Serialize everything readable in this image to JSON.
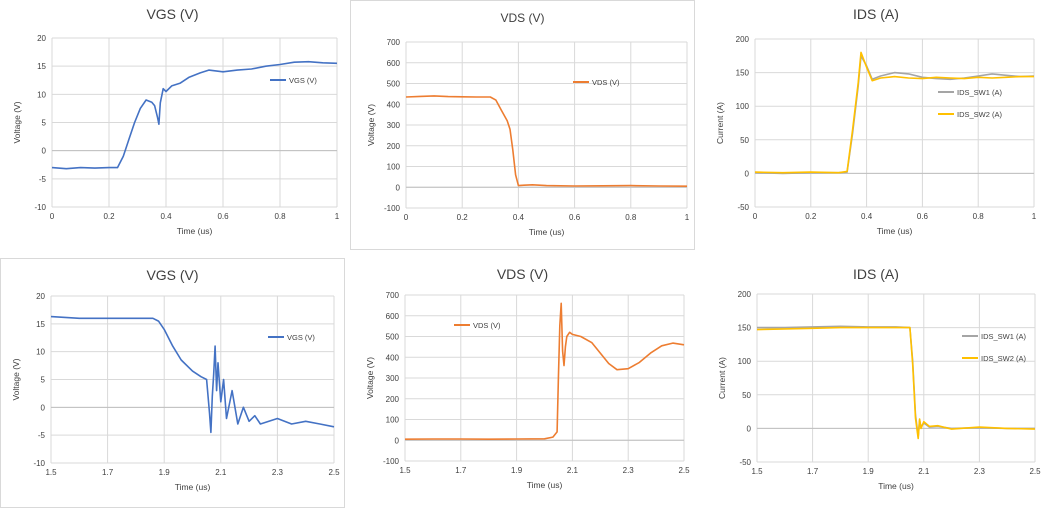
{
  "chart_data": [
    {
      "type": "line",
      "title": "VGS (V)",
      "xlabel": "Time (us)",
      "ylabel": "Voltage (V)",
      "xlim": [
        0,
        1
      ],
      "ylim": [
        -10,
        20
      ],
      "xticks": [
        0,
        0.2,
        0.4,
        0.6,
        0.8,
        1
      ],
      "yticks": [
        -10,
        -5,
        0,
        5,
        10,
        15,
        20
      ],
      "xtick_labels": [
        "0",
        "0.2",
        "0.4",
        "0.6",
        "0.8",
        "1"
      ],
      "ytick_labels": [
        "-10",
        "-5",
        "0",
        "5",
        "10",
        "15",
        "20"
      ],
      "grid": true,
      "legend_position": "right",
      "series": [
        {
          "name": "VGS (V)",
          "color": "#4472c4",
          "x": [
            0,
            0.05,
            0.1,
            0.15,
            0.2,
            0.23,
            0.25,
            0.27,
            0.29,
            0.31,
            0.33,
            0.35,
            0.36,
            0.37,
            0.375,
            0.38,
            0.39,
            0.4,
            0.42,
            0.45,
            0.48,
            0.52,
            0.55,
            0.6,
            0.65,
            0.7,
            0.75,
            0.8,
            0.85,
            0.9,
            0.95,
            1.0
          ],
          "y": [
            -3,
            -3.2,
            -3,
            -3.1,
            -3,
            -3,
            -1,
            2,
            5,
            7.5,
            9,
            8.6,
            8,
            6,
            4.7,
            8.5,
            11,
            10.5,
            11.5,
            12,
            13,
            13.8,
            14.3,
            14,
            14.3,
            14.5,
            15,
            15.3,
            15.7,
            15.8,
            15.6,
            15.5
          ]
        }
      ]
    },
    {
      "type": "line",
      "title": "VDS (V)",
      "xlabel": "Time (us)",
      "ylabel": "Voltage (V)",
      "xlim": [
        0,
        1
      ],
      "ylim": [
        -100,
        700
      ],
      "xticks": [
        0,
        0.2,
        0.4,
        0.6,
        0.8,
        1
      ],
      "yticks": [
        -100,
        0,
        100,
        200,
        300,
        400,
        500,
        600,
        700
      ],
      "xtick_labels": [
        "0",
        "0.2",
        "0.4",
        "0.6",
        "0.8",
        "1"
      ],
      "ytick_labels": [
        "-100",
        "0",
        "100",
        "200",
        "300",
        "400",
        "500",
        "600",
        "700"
      ],
      "grid": true,
      "legend_position": "right",
      "series": [
        {
          "name": "VDS (V)",
          "color": "#ed7d31",
          "x": [
            0,
            0.05,
            0.1,
            0.15,
            0.2,
            0.25,
            0.3,
            0.32,
            0.34,
            0.36,
            0.37,
            0.38,
            0.39,
            0.4,
            0.42,
            0.45,
            0.5,
            0.6,
            0.7,
            0.8,
            0.9,
            1.0
          ],
          "y": [
            435,
            438,
            440,
            437,
            436,
            435,
            435,
            420,
            370,
            320,
            280,
            180,
            60,
            8,
            10,
            12,
            8,
            6,
            7,
            8,
            6,
            5
          ]
        }
      ]
    },
    {
      "type": "line",
      "title": "IDS (A)",
      "xlabel": "Time (us)",
      "ylabel": "Current (A)",
      "xlim": [
        0,
        1
      ],
      "ylim": [
        -50,
        200
      ],
      "xticks": [
        0,
        0.2,
        0.4,
        0.6,
        0.8,
        1
      ],
      "yticks": [
        -50,
        0,
        50,
        100,
        150,
        200
      ],
      "xtick_labels": [
        "0",
        "0.2",
        "0.4",
        "0.6",
        "0.8",
        "1"
      ],
      "ytick_labels": [
        "-50",
        "0",
        "50",
        "100",
        "150",
        "200"
      ],
      "grid": true,
      "legend_position": "right",
      "series": [
        {
          "name": "IDS_SW1 (A)",
          "color": "#a5a5a5",
          "x": [
            0,
            0.1,
            0.2,
            0.3,
            0.33,
            0.35,
            0.37,
            0.38,
            0.4,
            0.42,
            0.45,
            0.5,
            0.55,
            0.6,
            0.65,
            0.7,
            0.75,
            0.8,
            0.85,
            0.9,
            0.95,
            1.0
          ],
          "y": [
            1,
            0,
            1,
            1,
            2,
            60,
            130,
            175,
            160,
            140,
            145,
            150,
            148,
            143,
            141,
            140,
            142,
            145,
            148,
            146,
            144,
            145
          ]
        },
        {
          "name": "IDS_SW2 (A)",
          "color": "#ffc000",
          "x": [
            0,
            0.1,
            0.2,
            0.3,
            0.33,
            0.35,
            0.37,
            0.38,
            0.4,
            0.42,
            0.45,
            0.5,
            0.55,
            0.6,
            0.65,
            0.7,
            0.75,
            0.8,
            0.85,
            0.9,
            0.95,
            1.0
          ],
          "y": [
            2,
            1,
            2,
            1,
            3,
            65,
            135,
            180,
            158,
            138,
            142,
            144,
            142,
            141,
            143,
            142,
            141,
            143,
            142,
            143,
            144,
            144
          ]
        }
      ]
    },
    {
      "type": "line",
      "title": "VGS (V)",
      "xlabel": "Time (us)",
      "ylabel": "Voltage (V)",
      "xlim": [
        1.5,
        2.5
      ],
      "ylim": [
        -10,
        20
      ],
      "xticks": [
        1.5,
        1.7,
        1.9,
        2.1,
        2.3,
        2.5
      ],
      "yticks": [
        -10,
        -5,
        0,
        5,
        10,
        15,
        20
      ],
      "xtick_labels": [
        "1.5",
        "1.7",
        "1.9",
        "2.1",
        "2.3",
        "2.5"
      ],
      "ytick_labels": [
        "-10",
        "-5",
        "0",
        "5",
        "10",
        "15",
        "20"
      ],
      "grid": true,
      "legend_position": "right",
      "series": [
        {
          "name": "VGS (V)",
          "color": "#4472c4",
          "x": [
            1.5,
            1.6,
            1.7,
            1.8,
            1.86,
            1.88,
            1.9,
            1.93,
            1.96,
            2.0,
            2.03,
            2.05,
            2.06,
            2.065,
            2.07,
            2.075,
            2.08,
            2.085,
            2.09,
            2.1,
            2.11,
            2.12,
            2.14,
            2.16,
            2.18,
            2.2,
            2.22,
            2.24,
            2.27,
            2.3,
            2.35,
            2.4,
            2.45,
            2.5
          ],
          "y": [
            16.3,
            16,
            16,
            16,
            16,
            15.5,
            14,
            11,
            8.5,
            6.5,
            5.5,
            5,
            -1,
            -4.5,
            2,
            6,
            11,
            3,
            8,
            1,
            5,
            -2,
            3,
            -3,
            0,
            -2.5,
            -1.5,
            -3,
            -2.5,
            -2,
            -3,
            -2.5,
            -3,
            -3.5
          ]
        }
      ]
    },
    {
      "type": "line",
      "title": "VDS (V)",
      "xlabel": "Time (us)",
      "ylabel": "Voltage (V)",
      "xlim": [
        1.5,
        2.5
      ],
      "ylim": [
        -100,
        700
      ],
      "xticks": [
        1.5,
        1.7,
        1.9,
        2.1,
        2.3,
        2.5
      ],
      "yticks": [
        -100,
        0,
        100,
        200,
        300,
        400,
        500,
        600,
        700
      ],
      "xtick_labels": [
        "1.5",
        "1.7",
        "1.9",
        "2.1",
        "2.3",
        "2.5"
      ],
      "ytick_labels": [
        "-100",
        "0",
        "100",
        "200",
        "300",
        "400",
        "500",
        "600",
        "700"
      ],
      "grid": true,
      "legend_position": "top-left",
      "series": [
        {
          "name": "VDS (V)",
          "color": "#ed7d31",
          "x": [
            1.5,
            1.6,
            1.7,
            1.8,
            1.9,
            2.0,
            2.03,
            2.045,
            2.05,
            2.055,
            2.06,
            2.065,
            2.07,
            2.075,
            2.08,
            2.09,
            2.1,
            2.13,
            2.17,
            2.2,
            2.23,
            2.26,
            2.3,
            2.34,
            2.38,
            2.42,
            2.46,
            2.5
          ],
          "y": [
            5,
            6,
            6,
            5,
            6,
            7,
            15,
            40,
            300,
            550,
            660,
            430,
            360,
            450,
            500,
            520,
            510,
            500,
            470,
            420,
            370,
            340,
            345,
            375,
            420,
            455,
            468,
            460
          ]
        }
      ]
    },
    {
      "type": "line",
      "title": "IDS (A)",
      "xlabel": "Time (us)",
      "ylabel": "Current (A)",
      "xlim": [
        1.5,
        2.5
      ],
      "ylim": [
        -50,
        200
      ],
      "xticks": [
        1.5,
        1.7,
        1.9,
        2.1,
        2.3,
        2.5
      ],
      "yticks": [
        -50,
        0,
        50,
        100,
        150,
        200
      ],
      "xtick_labels": [
        "1.5",
        "1.7",
        "1.9",
        "2.1",
        "2.3",
        "2.5"
      ],
      "ytick_labels": [
        "-50",
        "0",
        "50",
        "100",
        "150",
        "200"
      ],
      "grid": true,
      "legend_position": "right",
      "series": [
        {
          "name": "IDS_SW1 (A)",
          "color": "#a5a5a5",
          "x": [
            1.5,
            1.6,
            1.7,
            1.8,
            1.9,
            2.0,
            2.05,
            2.06,
            2.07,
            2.08,
            2.085,
            2.09,
            2.1,
            2.12,
            2.15,
            2.2,
            2.3,
            2.4,
            2.5
          ],
          "y": [
            150,
            150,
            151,
            152,
            151,
            151,
            150,
            100,
            20,
            -12,
            12,
            2,
            8,
            2,
            3,
            0,
            1,
            0,
            0
          ]
        },
        {
          "name": "IDS_SW2 (A)",
          "color": "#ffc000",
          "x": [
            1.5,
            1.6,
            1.7,
            1.8,
            1.9,
            2.0,
            2.05,
            2.06,
            2.07,
            2.08,
            2.085,
            2.09,
            2.1,
            2.12,
            2.15,
            2.2,
            2.3,
            2.4,
            2.5
          ],
          "y": [
            147,
            148,
            149,
            150,
            150,
            150,
            150,
            95,
            15,
            -15,
            14,
            0,
            10,
            3,
            4,
            -1,
            2,
            0,
            -1
          ]
        }
      ]
    }
  ]
}
